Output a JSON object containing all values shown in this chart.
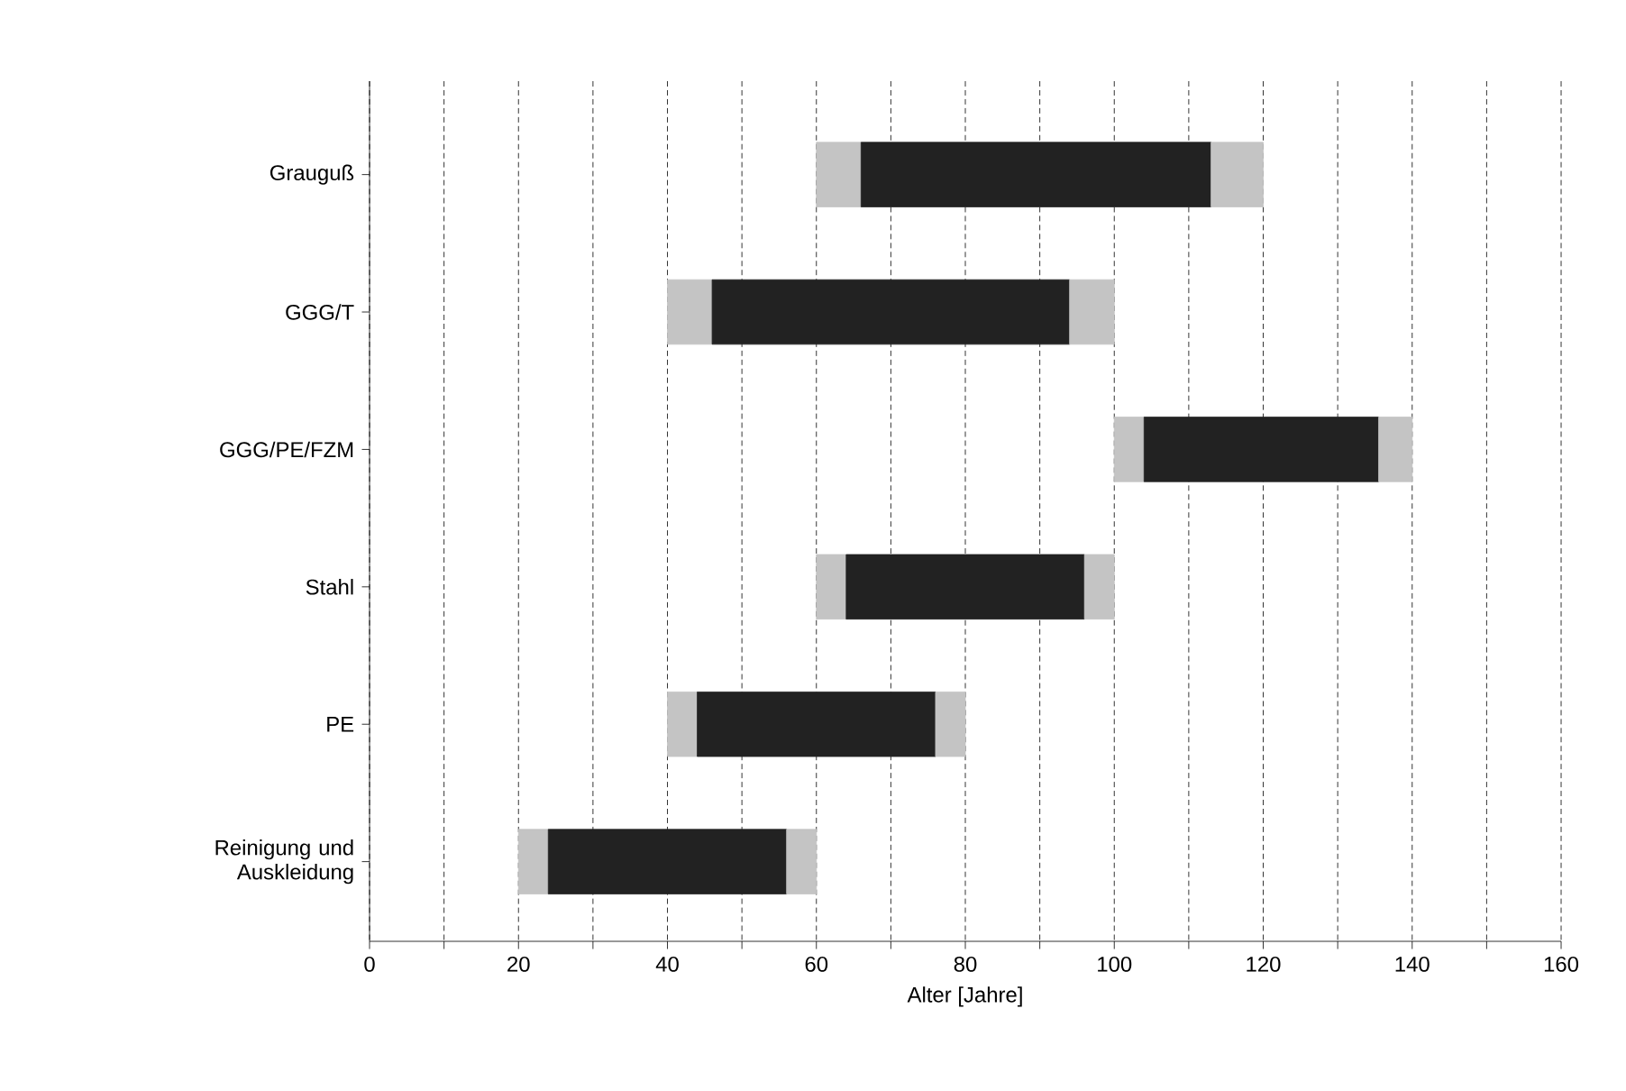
{
  "chart_data": {
    "type": "bar",
    "orientation": "horizontal",
    "xlabel": "Alter [Jahre]",
    "categories": [
      "Grauguß",
      "GGG/T",
      "GGG/PE/FZM",
      "Stahl",
      "PE",
      "Reinigung und Auskleidung"
    ],
    "series": [
      {
        "color": "#c4c4c4",
        "base": [
          60,
          40,
          100,
          60,
          40,
          20
        ],
        "values": [
          6,
          6,
          4,
          4,
          4,
          4
        ]
      },
      {
        "color": "#222222",
        "base": [
          66,
          46,
          104,
          64,
          44,
          24
        ],
        "values": [
          47,
          48,
          31.5,
          32,
          32,
          32
        ]
      },
      {
        "color": "#c4c4c4",
        "base": [
          113,
          94,
          135.5,
          96,
          76,
          56
        ],
        "values": [
          7,
          6,
          4.5,
          4,
          4,
          4
        ]
      }
    ],
    "xlim": [
      0,
      160
    ],
    "xticks": [
      0,
      {
        "value": 10,
        "label": null
      },
      20,
      {
        "value": 30,
        "label": null
      },
      40,
      {
        "value": 50,
        "label": null
      },
      60,
      {
        "value": 70,
        "label": null
      },
      80,
      {
        "value": 90,
        "label": null
      },
      100,
      {
        "value": 110,
        "label": null
      },
      120,
      {
        "value": 130,
        "label": null
      },
      140,
      {
        "value": 150,
        "label": null
      },
      160
    ],
    "grid": "x"
  }
}
